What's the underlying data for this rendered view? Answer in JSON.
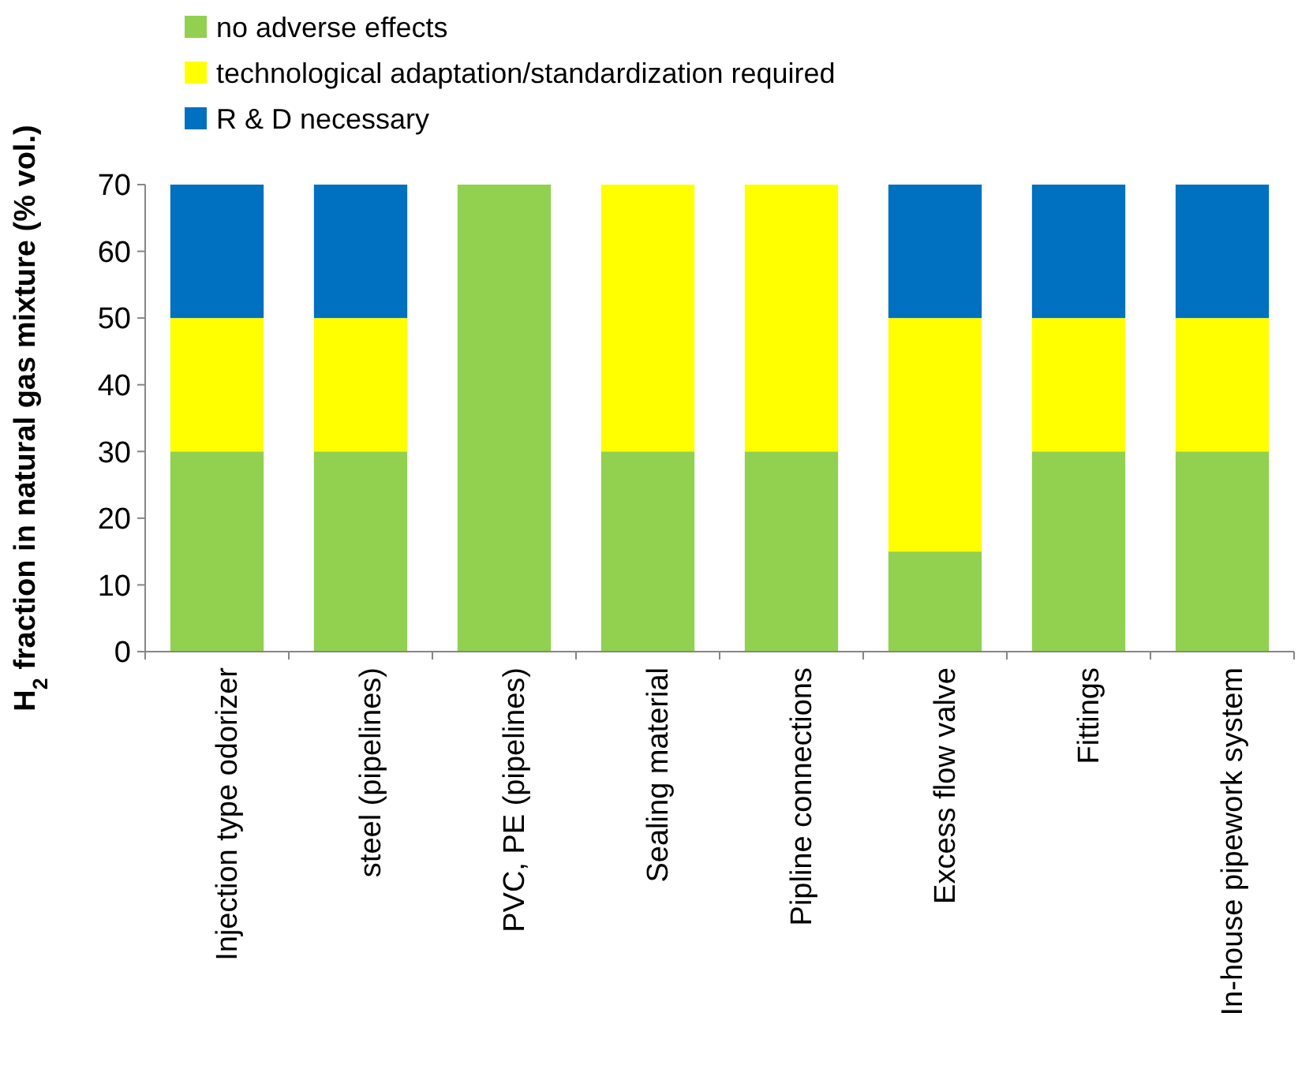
{
  "chart_data": {
    "type": "bar",
    "stacked": true,
    "ylabel": "H$_{2}$ fraction in natural gas mixture (% vol.)",
    "categories": [
      "Injection type odorizer",
      "steel (pipelines)",
      "PVC, PE (pipelines)",
      "Sealing material",
      "Pipline connections",
      "Excess flow valve",
      "Fittings",
      "In-house pipework system"
    ],
    "series": [
      {
        "name": "no adverse effects",
        "color": "#92d050",
        "values": [
          30,
          30,
          70,
          30,
          30,
          15,
          30,
          30
        ]
      },
      {
        "name": "technological adaptation/standardization required",
        "color": "#ffff00",
        "values": [
          20,
          20,
          0,
          40,
          40,
          35,
          20,
          20
        ]
      },
      {
        "name": "R & D necessary",
        "color": "#0070c0",
        "values": [
          20,
          20,
          0,
          0,
          0,
          20,
          20,
          20
        ]
      }
    ],
    "ylim": [
      0,
      70
    ],
    "yticks": [
      0,
      10,
      20,
      30,
      40,
      50,
      60,
      70
    ],
    "grid": false,
    "legend": "top"
  }
}
